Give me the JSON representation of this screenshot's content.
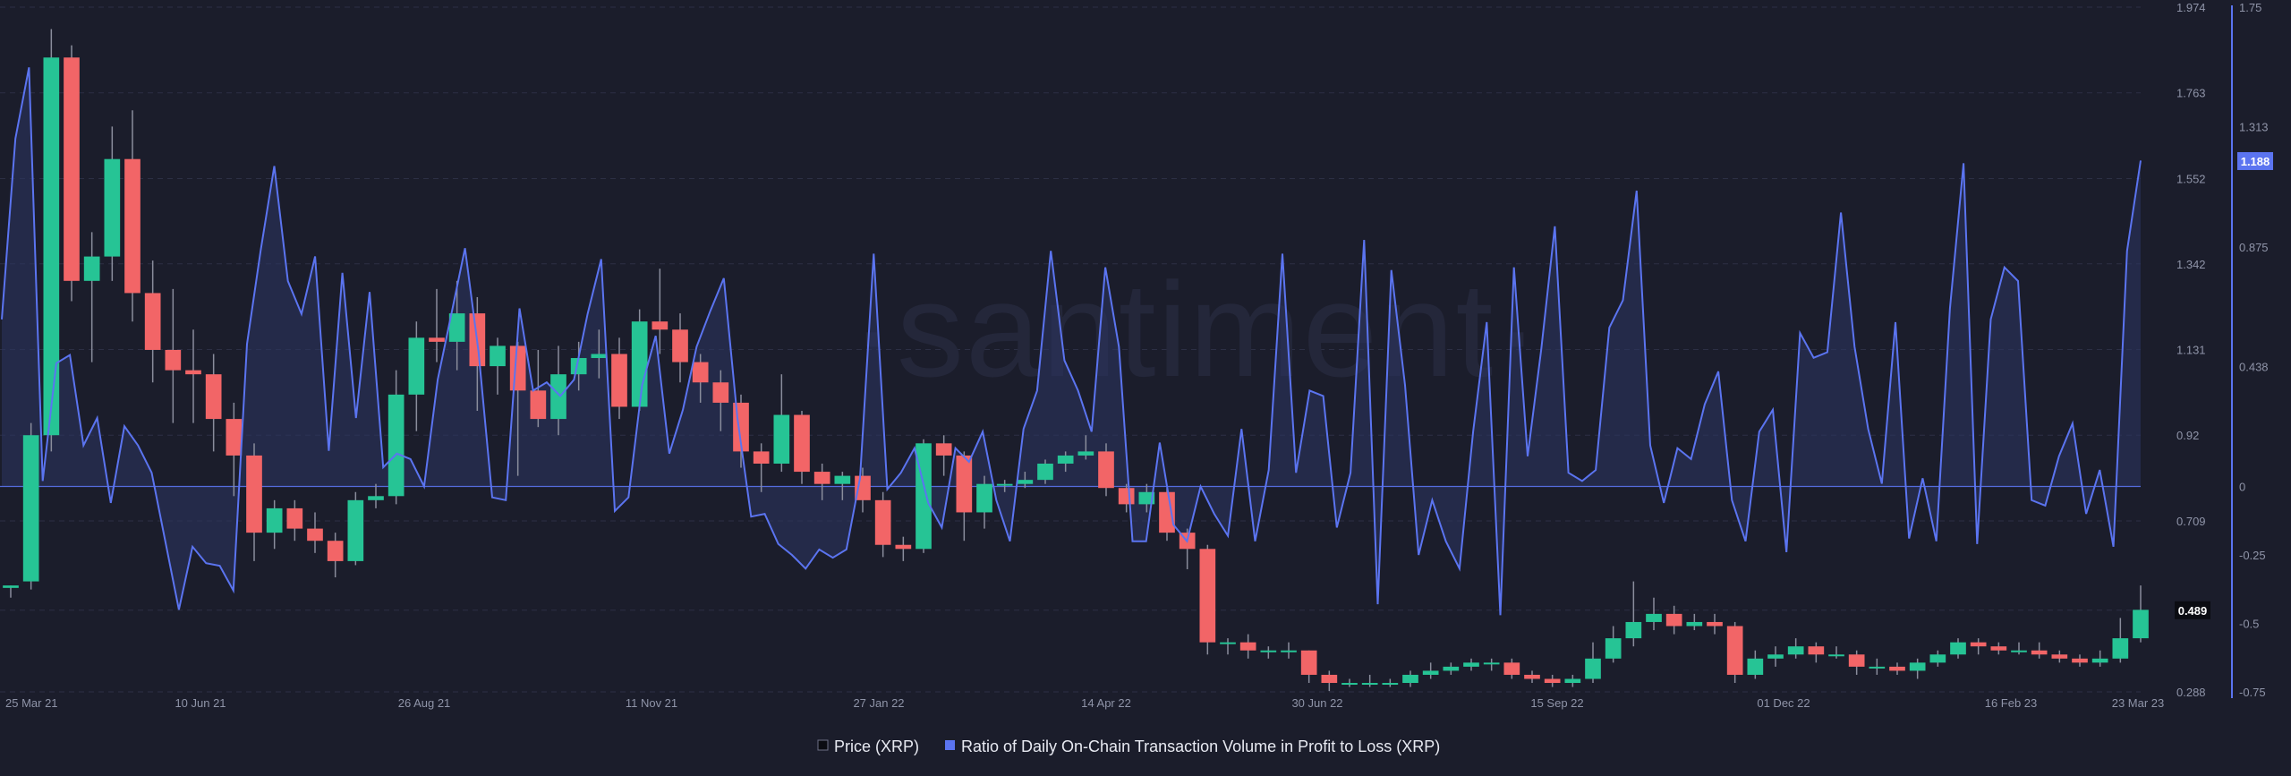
{
  "watermark": "·santiment·",
  "colors": {
    "background": "#1b1d2b",
    "up": "#26c495",
    "down": "#f26567",
    "ratio_line": "#5b74f0",
    "ratio_fill": "#2c3463",
    "grid": "#2c2f44",
    "axis_text": "#8f94a8"
  },
  "chart_data": {
    "type": "line",
    "title": "",
    "x_tick_labels": [
      "25 Mar 21",
      "10 Jun 21",
      "26 Aug 21",
      "11 Nov 21",
      "27 Jan 22",
      "14 Apr 22",
      "30 Jun 22",
      "15 Sep 22",
      "01 Dec 22",
      "16 Feb 23",
      "23 Mar 23"
    ],
    "price_axis": {
      "ticks": [
        "1.974",
        "1.763",
        "1.552",
        "1.342",
        "1.131",
        "0.92",
        "0.709",
        "0.489",
        "0.288"
      ],
      "range": [
        0.288,
        1.974
      ]
    },
    "ratio_axis": {
      "ticks": [
        "1.75",
        "1.313",
        "0.875",
        "0.438",
        "0",
        "-0.25",
        "-0.5",
        "-0.75"
      ],
      "range": [
        -0.75,
        1.75
      ]
    },
    "last_values": {
      "price": "0.489",
      "ratio": "1.188"
    },
    "legend": [
      {
        "name": "Price (XRP)",
        "icon": "square-icon"
      },
      {
        "name": "Ratio of Daily On-Chain Transaction Volume in Profit to Loss (XRP)",
        "icon": "square-icon"
      }
    ],
    "series": [
      {
        "name": "Price (XRP)",
        "type": "candlestick",
        "ohlc": [
          [
            0.544,
            0.55,
            0.55,
            0.52
          ],
          [
            0.56,
            0.92,
            0.95,
            0.54
          ],
          [
            0.92,
            1.85,
            1.92,
            0.88
          ],
          [
            1.85,
            1.3,
            1.88,
            1.25
          ],
          [
            1.3,
            1.36,
            1.42,
            1.1
          ],
          [
            1.36,
            1.6,
            1.68,
            1.3
          ],
          [
            1.6,
            1.27,
            1.72,
            1.2
          ],
          [
            1.27,
            1.13,
            1.35,
            1.05
          ],
          [
            1.13,
            1.08,
            1.28,
            0.95
          ],
          [
            1.08,
            1.07,
            1.18,
            0.95
          ],
          [
            1.07,
            0.96,
            1.12,
            0.88
          ],
          [
            0.96,
            0.87,
            1.0,
            0.77
          ],
          [
            0.87,
            0.68,
            0.9,
            0.61
          ],
          [
            0.68,
            0.74,
            0.76,
            0.64
          ],
          [
            0.74,
            0.69,
            0.76,
            0.66
          ],
          [
            0.69,
            0.66,
            0.73,
            0.63
          ],
          [
            0.66,
            0.61,
            0.68,
            0.57
          ],
          [
            0.61,
            0.76,
            0.78,
            0.6
          ],
          [
            0.76,
            0.77,
            0.8,
            0.74
          ],
          [
            0.77,
            1.02,
            1.08,
            0.75
          ],
          [
            1.02,
            1.16,
            1.2,
            0.93
          ],
          [
            1.16,
            1.15,
            1.28,
            1.1
          ],
          [
            1.15,
            1.22,
            1.3,
            1.08
          ],
          [
            1.22,
            1.09,
            1.26,
            0.98
          ],
          [
            1.09,
            1.14,
            1.16,
            1.02
          ],
          [
            1.14,
            1.03,
            1.15,
            0.82
          ],
          [
            1.03,
            0.96,
            1.13,
            0.94
          ],
          [
            0.96,
            1.07,
            1.14,
            0.92
          ],
          [
            1.07,
            1.11,
            1.15,
            1.03
          ],
          [
            1.11,
            1.12,
            1.18,
            1.06
          ],
          [
            1.12,
            0.99,
            1.16,
            0.96
          ],
          [
            0.99,
            1.2,
            1.23,
            0.98
          ],
          [
            1.2,
            1.18,
            1.33,
            1.12
          ],
          [
            1.18,
            1.1,
            1.22,
            1.05
          ],
          [
            1.1,
            1.05,
            1.12,
            1.0
          ],
          [
            1.05,
            1.0,
            1.08,
            0.93
          ],
          [
            1.0,
            0.88,
            1.02,
            0.84
          ],
          [
            0.88,
            0.85,
            0.9,
            0.78
          ],
          [
            0.85,
            0.97,
            1.07,
            0.83
          ],
          [
            0.97,
            0.83,
            0.98,
            0.8
          ],
          [
            0.83,
            0.8,
            0.85,
            0.76
          ],
          [
            0.8,
            0.82,
            0.83,
            0.76
          ],
          [
            0.82,
            0.76,
            0.84,
            0.73
          ],
          [
            0.76,
            0.65,
            0.78,
            0.62
          ],
          [
            0.65,
            0.64,
            0.67,
            0.61
          ],
          [
            0.64,
            0.9,
            0.91,
            0.63
          ],
          [
            0.9,
            0.87,
            0.92,
            0.82
          ],
          [
            0.87,
            0.73,
            0.88,
            0.66
          ],
          [
            0.73,
            0.8,
            0.82,
            0.69
          ],
          [
            0.8,
            0.8,
            0.81,
            0.78
          ],
          [
            0.8,
            0.81,
            0.83,
            0.79
          ],
          [
            0.81,
            0.85,
            0.86,
            0.8
          ],
          [
            0.85,
            0.87,
            0.88,
            0.83
          ],
          [
            0.87,
            0.88,
            0.92,
            0.86
          ],
          [
            0.88,
            0.79,
            0.9,
            0.77
          ],
          [
            0.79,
            0.75,
            0.8,
            0.73
          ],
          [
            0.75,
            0.78,
            0.8,
            0.73
          ],
          [
            0.78,
            0.68,
            0.79,
            0.66
          ],
          [
            0.68,
            0.64,
            0.69,
            0.59
          ],
          [
            0.64,
            0.41,
            0.65,
            0.38
          ],
          [
            0.41,
            0.41,
            0.42,
            0.38
          ],
          [
            0.41,
            0.39,
            0.43,
            0.37
          ],
          [
            0.39,
            0.39,
            0.4,
            0.37
          ],
          [
            0.39,
            0.39,
            0.41,
            0.37
          ],
          [
            0.39,
            0.33,
            0.39,
            0.31
          ],
          [
            0.33,
            0.31,
            0.34,
            0.29
          ],
          [
            0.31,
            0.31,
            0.32,
            0.3
          ],
          [
            0.31,
            0.31,
            0.33,
            0.3
          ],
          [
            0.31,
            0.31,
            0.32,
            0.3
          ],
          [
            0.31,
            0.33,
            0.34,
            0.3
          ],
          [
            0.33,
            0.34,
            0.36,
            0.32
          ],
          [
            0.34,
            0.35,
            0.36,
            0.33
          ],
          [
            0.35,
            0.36,
            0.37,
            0.34
          ],
          [
            0.36,
            0.36,
            0.37,
            0.34
          ],
          [
            0.36,
            0.33,
            0.37,
            0.32
          ],
          [
            0.33,
            0.32,
            0.34,
            0.31
          ],
          [
            0.32,
            0.31,
            0.33,
            0.3
          ],
          [
            0.31,
            0.32,
            0.33,
            0.3
          ],
          [
            0.32,
            0.37,
            0.41,
            0.31
          ],
          [
            0.37,
            0.42,
            0.45,
            0.36
          ],
          [
            0.42,
            0.46,
            0.56,
            0.4
          ],
          [
            0.46,
            0.48,
            0.52,
            0.44
          ],
          [
            0.48,
            0.45,
            0.5,
            0.43
          ],
          [
            0.45,
            0.46,
            0.48,
            0.44
          ],
          [
            0.46,
            0.45,
            0.48,
            0.43
          ],
          [
            0.45,
            0.33,
            0.46,
            0.31
          ],
          [
            0.33,
            0.37,
            0.39,
            0.32
          ],
          [
            0.37,
            0.38,
            0.4,
            0.35
          ],
          [
            0.38,
            0.4,
            0.42,
            0.37
          ],
          [
            0.4,
            0.38,
            0.41,
            0.36
          ],
          [
            0.38,
            0.38,
            0.4,
            0.37
          ],
          [
            0.38,
            0.35,
            0.39,
            0.33
          ],
          [
            0.35,
            0.35,
            0.37,
            0.33
          ],
          [
            0.35,
            0.34,
            0.36,
            0.33
          ],
          [
            0.34,
            0.36,
            0.37,
            0.32
          ],
          [
            0.36,
            0.38,
            0.39,
            0.35
          ],
          [
            0.38,
            0.41,
            0.42,
            0.37
          ],
          [
            0.41,
            0.4,
            0.42,
            0.38
          ],
          [
            0.4,
            0.39,
            0.41,
            0.38
          ],
          [
            0.39,
            0.39,
            0.41,
            0.38
          ],
          [
            0.39,
            0.38,
            0.41,
            0.37
          ],
          [
            0.38,
            0.37,
            0.39,
            0.36
          ],
          [
            0.37,
            0.36,
            0.38,
            0.35
          ],
          [
            0.36,
            0.37,
            0.39,
            0.35
          ],
          [
            0.37,
            0.42,
            0.47,
            0.36
          ],
          [
            0.42,
            0.49,
            0.55,
            0.41
          ]
        ]
      },
      {
        "name": "Ratio of Daily On-Chain Transaction Volume in Profit to Loss (XRP)",
        "type": "area",
        "values": [
          0.61,
          1.27,
          1.53,
          0.02,
          0.45,
          0.48,
          0.15,
          0.25,
          -0.06,
          0.22,
          0.15,
          0.05,
          -0.2,
          -0.45,
          -0.22,
          -0.28,
          -0.29,
          -0.38,
          0.52,
          0.86,
          1.17,
          0.75,
          0.63,
          0.84,
          0.13,
          0.78,
          0.25,
          0.71,
          0.07,
          0.12,
          0.1,
          0.0,
          0.39,
          0.63,
          0.87,
          0.49,
          -0.04,
          -0.05,
          0.65,
          0.35,
          0.38,
          0.33,
          0.39,
          0.63,
          0.83,
          -0.09,
          -0.04,
          0.37,
          0.55,
          0.12,
          0.28,
          0.51,
          0.64,
          0.76,
          0.25,
          -0.11,
          -0.1,
          -0.21,
          -0.25,
          -0.3,
          -0.23,
          -0.26,
          -0.23,
          0.03,
          0.85,
          -0.01,
          0.05,
          0.14,
          -0.06,
          -0.15,
          0.14,
          0.09,
          0.2,
          -0.05,
          -0.2,
          0.21,
          0.35,
          0.86,
          0.46,
          0.35,
          0.2,
          0.8,
          0.51,
          -0.2,
          -0.2,
          0.16,
          -0.14,
          -0.2,
          0.0,
          -0.1,
          -0.18,
          0.21,
          -0.2,
          0.06,
          0.85,
          0.05,
          0.35,
          0.33,
          -0.15,
          0.05,
          0.9,
          -0.43,
          0.79,
          0.37,
          -0.25,
          -0.05,
          -0.2,
          -0.3,
          0.2,
          0.6,
          -0.47,
          0.8,
          0.11,
          0.5,
          0.95,
          0.05,
          0.02,
          0.06,
          0.58,
          0.68,
          1.08,
          0.15,
          -0.06,
          0.14,
          0.1,
          0.3,
          0.42,
          -0.05,
          -0.2,
          0.2,
          0.28,
          -0.24,
          0.56,
          0.47,
          0.49,
          1.0,
          0.51,
          0.21,
          0.01,
          0.6,
          -0.19,
          0.03,
          -0.2,
          0.65,
          1.18,
          -0.21,
          0.61,
          0.8,
          0.75,
          -0.05,
          -0.07,
          0.11,
          0.23,
          -0.1,
          0.06,
          -0.22,
          0.86,
          1.19
        ]
      }
    ]
  }
}
